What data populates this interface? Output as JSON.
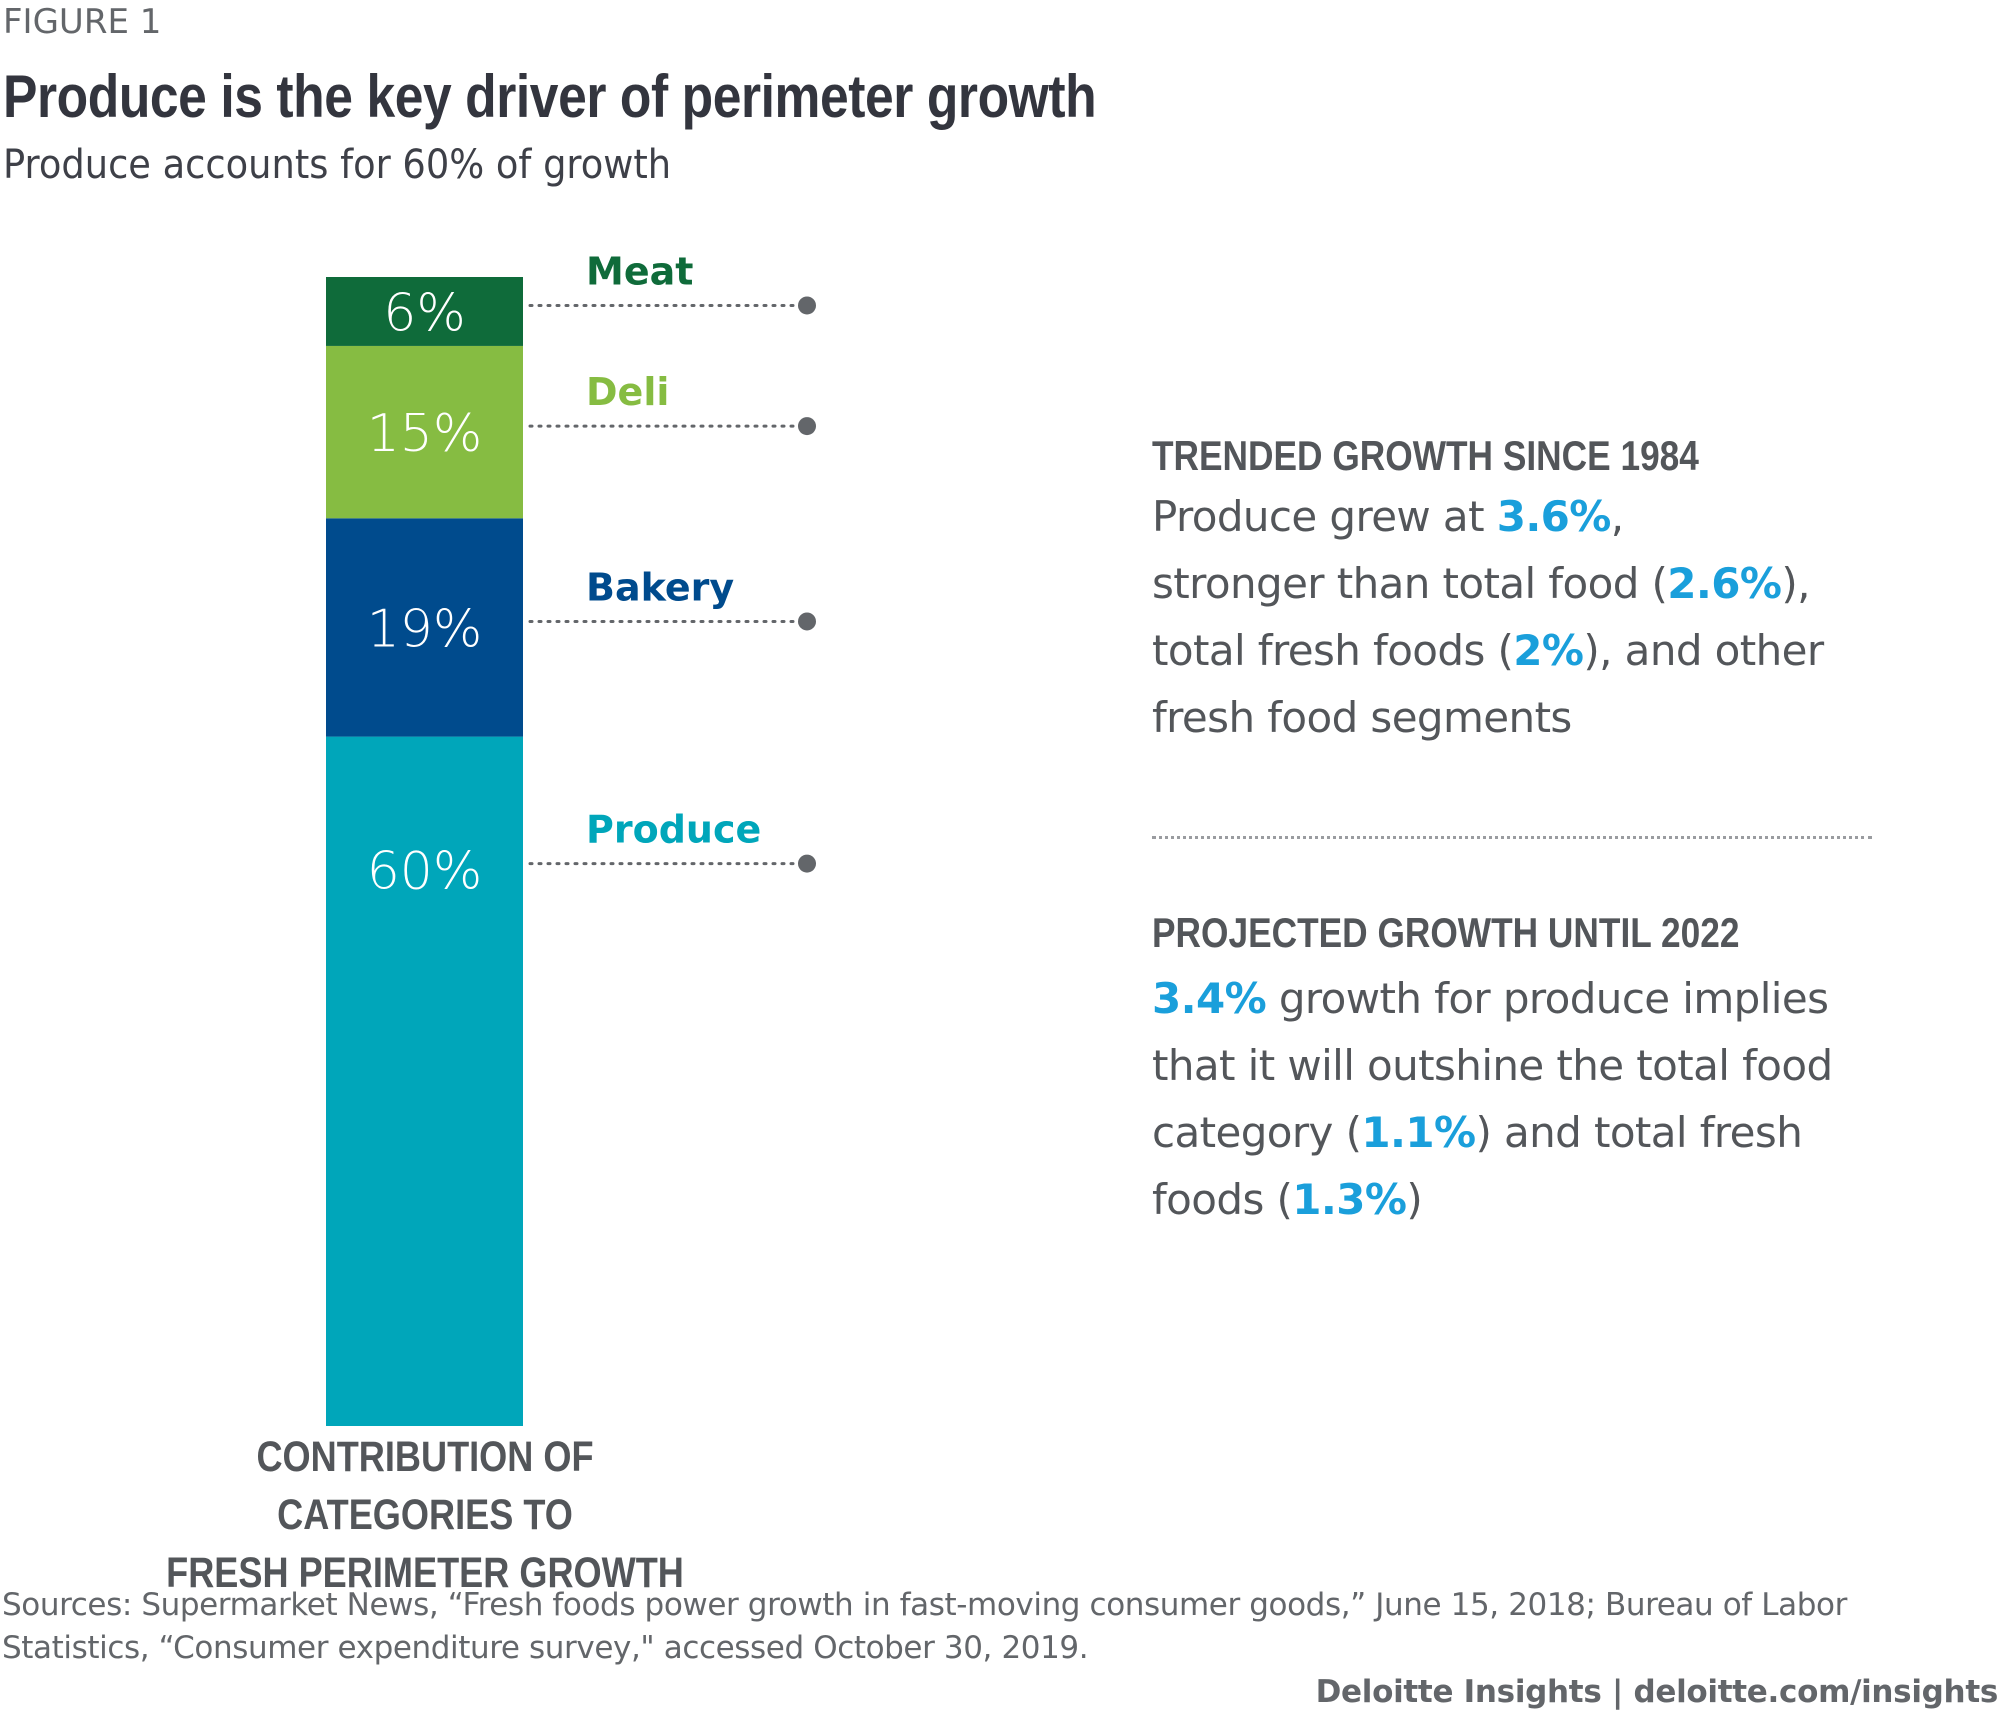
{
  "header": {
    "figure_label": "FIGURE 1",
    "title": "Produce is the key driver of perimeter growth",
    "subtitle": "Produce accounts for 60% of growth"
  },
  "chart_data": {
    "type": "bar",
    "stacked": true,
    "title": "Produce is the key driver of perimeter growth",
    "subtitle": "Produce accounts for 60% of growth",
    "xlabel": "CONTRIBUTION OF CATEGORIES TO FRESH PERIMETER GROWTH",
    "ylabel": "",
    "categories": [
      "Contribution of categories to fresh perimeter growth"
    ],
    "unit": "%",
    "ylim": [
      0,
      100
    ],
    "grid": false,
    "legend": "right",
    "series": [
      {
        "name": "Produce",
        "values": [
          60
        ],
        "label": "60%",
        "color": "#00A6BA"
      },
      {
        "name": "Bakery",
        "values": [
          19
        ],
        "label": "19%",
        "color": "#004B8D"
      },
      {
        "name": "Deli",
        "values": [
          15
        ],
        "label": "15%",
        "color": "#86BC42"
      },
      {
        "name": "Meat",
        "values": [
          6
        ],
        "label": "6%",
        "color": "#0F6B3A"
      }
    ],
    "axis_caption_lines": [
      "CONTRIBUTION OF CATEGORIES TO",
      "FRESH PERIMETER GROWTH"
    ]
  },
  "colors": {
    "highlight": "#1A9FDB",
    "text": "#53565A",
    "title": "#33353E",
    "leader": "#63666A"
  },
  "panels": {
    "trended": {
      "heading": "TRENDED GROWTH SINCE 1984",
      "lines": [
        [
          {
            "t": "Produce grew at "
          },
          {
            "t": "3.6%",
            "hl": true
          },
          {
            "t": ","
          }
        ],
        [
          {
            "t": "stronger than total food ("
          },
          {
            "t": "2.6%",
            "hl": true
          },
          {
            "t": "),"
          }
        ],
        [
          {
            "t": "total fresh foods ("
          },
          {
            "t": "2%",
            "hl": true
          },
          {
            "t": "), and other"
          }
        ],
        [
          {
            "t": "fresh food segments"
          }
        ]
      ]
    },
    "projected": {
      "heading": "PROJECTED GROWTH UNTIL 2022",
      "lines": [
        [
          {
            "t": "3.4%",
            "hl": true
          },
          {
            "t": " growth for produce implies"
          }
        ],
        [
          {
            "t": "that it will outshine the total food"
          }
        ],
        [
          {
            "t": "category ("
          },
          {
            "t": "1.1%",
            "hl": true
          },
          {
            "t": ") and total fresh"
          }
        ],
        [
          {
            "t": "foods ("
          },
          {
            "t": "1.3%",
            "hl": true
          },
          {
            "t": ")"
          }
        ]
      ]
    }
  },
  "footer": {
    "sources_lines": [
      "Sources: Supermarket News, “Fresh foods power growth in fast-moving consumer goods,” June 15, 2018; Bureau of Labor",
      "Statistics, “Consumer expenditure survey,\" accessed October 30, 2019."
    ],
    "credit": "Deloitte Insights | deloitte.com/insights"
  }
}
